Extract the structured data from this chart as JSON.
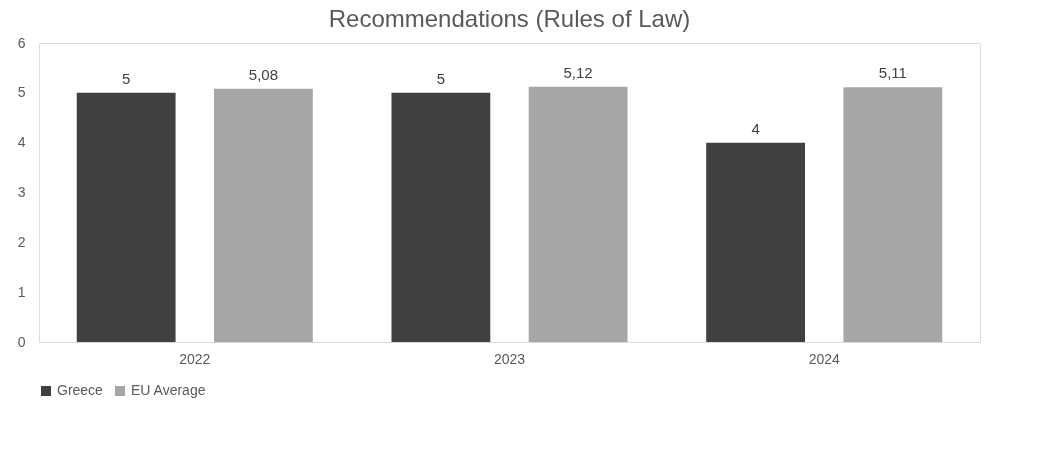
{
  "chart_data": {
    "type": "bar",
    "title": "Recommendations  (Rules of Law)",
    "categories": [
      "2022",
      "2023",
      "2024"
    ],
    "series": [
      {
        "name": "Greece",
        "color": "#404040",
        "values": [
          5,
          5,
          4
        ],
        "value_labels": [
          "5",
          "5",
          "4"
        ]
      },
      {
        "name": "EU Average",
        "color": "#a6a6a6",
        "values": [
          5.08,
          5.12,
          5.11
        ],
        "value_labels": [
          "5,08",
          "5,12",
          "5,11"
        ]
      }
    ],
    "ylim": [
      0,
      6
    ],
    "yticks": [
      0,
      1,
      2,
      3,
      4,
      5,
      6
    ],
    "grid": false,
    "legend": "bottom"
  }
}
